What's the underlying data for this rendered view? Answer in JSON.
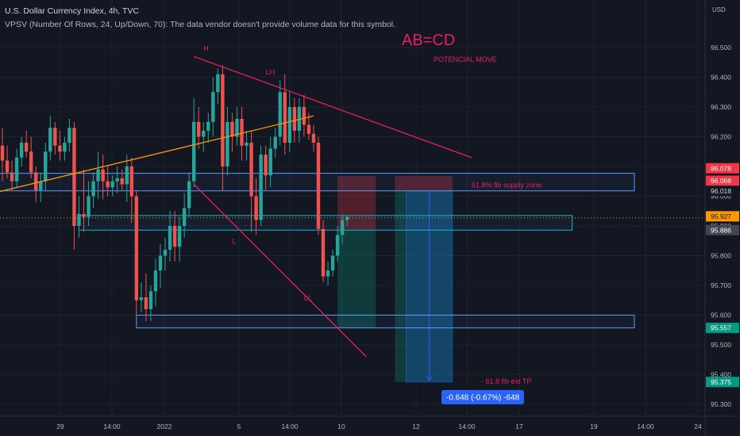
{
  "header": {
    "title": "U.S. Dollar Currency Index, 4h, TVC",
    "indicator": "VPSV (Number Of Rows, 24, Up/Down, 70): The data vendor doesn't provide volume data for this symbol."
  },
  "colors": {
    "background": "#131722",
    "up": "#26a69a",
    "down": "#ef5350",
    "magenta": "#e91e63",
    "orange": "#ff9800",
    "zone": "#5b9cf6",
    "target_blue": "#2962ff",
    "box_teal": "#00bcd4",
    "grid": "#1e222d",
    "text": "#b2b5be"
  },
  "chart_data": {
    "type": "candlestick",
    "symbol": "U.S. Dollar Currency Index",
    "timeframe": "4h",
    "source": "TVC",
    "ylim": [
      95.26,
      96.66
    ],
    "y_ticks": [
      95.3,
      95.4,
      95.5,
      95.6,
      95.7,
      95.8,
      95.9,
      96.0,
      96.1,
      96.2,
      96.3,
      96.4,
      96.5
    ],
    "y_axis_currency": "USD",
    "x_tick_labels": [
      "29",
      "14:00",
      "2022",
      "5",
      "14:00",
      "10",
      "12",
      "14:00",
      "17",
      "19",
      "14:00",
      "24"
    ],
    "candles": [
      {
        "o": 96.17,
        "h": 96.23,
        "l": 96.05,
        "c": 96.12
      },
      {
        "o": 96.12,
        "h": 96.17,
        "l": 96.06,
        "c": 96.08
      },
      {
        "o": 96.08,
        "h": 96.12,
        "l": 96.02,
        "c": 96.05
      },
      {
        "o": 96.05,
        "h": 96.16,
        "l": 96.03,
        "c": 96.13
      },
      {
        "o": 96.13,
        "h": 96.2,
        "l": 96.1,
        "c": 96.18
      },
      {
        "o": 96.18,
        "h": 96.22,
        "l": 96.13,
        "c": 96.15
      },
      {
        "o": 96.15,
        "h": 96.2,
        "l": 96.06,
        "c": 96.08
      },
      {
        "o": 96.08,
        "h": 96.1,
        "l": 95.98,
        "c": 96.02
      },
      {
        "o": 96.02,
        "h": 96.08,
        "l": 95.98,
        "c": 96.05
      },
      {
        "o": 96.05,
        "h": 96.18,
        "l": 96.02,
        "c": 96.15
      },
      {
        "o": 96.15,
        "h": 96.27,
        "l": 96.12,
        "c": 96.23
      },
      {
        "o": 96.23,
        "h": 96.25,
        "l": 96.14,
        "c": 96.17
      },
      {
        "o": 96.17,
        "h": 96.22,
        "l": 96.12,
        "c": 96.15
      },
      {
        "o": 96.15,
        "h": 96.2,
        "l": 96.12,
        "c": 96.18
      },
      {
        "o": 96.18,
        "h": 96.26,
        "l": 96.15,
        "c": 96.23
      },
      {
        "o": 96.23,
        "h": 96.25,
        "l": 95.82,
        "c": 95.9
      },
      {
        "o": 95.9,
        "h": 96.0,
        "l": 95.86,
        "c": 95.94
      },
      {
        "o": 95.94,
        "h": 96.09,
        "l": 95.88,
        "c": 95.93
      },
      {
        "o": 95.93,
        "h": 96.05,
        "l": 95.9,
        "c": 96.0
      },
      {
        "o": 96.0,
        "h": 96.08,
        "l": 95.96,
        "c": 96.05
      },
      {
        "o": 96.05,
        "h": 96.15,
        "l": 95.99,
        "c": 96.09
      },
      {
        "o": 96.09,
        "h": 96.14,
        "l": 95.99,
        "c": 96.05
      },
      {
        "o": 96.05,
        "h": 96.1,
        "l": 96.0,
        "c": 96.03
      },
      {
        "o": 96.03,
        "h": 96.07,
        "l": 96.0,
        "c": 96.05
      },
      {
        "o": 96.05,
        "h": 96.1,
        "l": 96.01,
        "c": 96.06
      },
      {
        "o": 96.06,
        "h": 96.09,
        "l": 96.02,
        "c": 96.04
      },
      {
        "o": 96.04,
        "h": 96.14,
        "l": 95.98,
        "c": 96.1
      },
      {
        "o": 96.1,
        "h": 96.13,
        "l": 95.91,
        "c": 96.0
      },
      {
        "o": 96.0,
        "h": 96.02,
        "l": 95.6,
        "c": 95.65
      },
      {
        "o": 95.65,
        "h": 95.71,
        "l": 95.61,
        "c": 95.66
      },
      {
        "o": 95.66,
        "h": 95.74,
        "l": 95.58,
        "c": 95.62
      },
      {
        "o": 95.62,
        "h": 95.7,
        "l": 95.58,
        "c": 95.68
      },
      {
        "o": 95.68,
        "h": 95.79,
        "l": 95.63,
        "c": 95.75
      },
      {
        "o": 95.75,
        "h": 95.84,
        "l": 95.69,
        "c": 95.8
      },
      {
        "o": 95.8,
        "h": 95.86,
        "l": 95.75,
        "c": 95.82
      },
      {
        "o": 95.82,
        "h": 95.95,
        "l": 95.78,
        "c": 95.9
      },
      {
        "o": 95.9,
        "h": 95.95,
        "l": 95.78,
        "c": 95.83
      },
      {
        "o": 95.83,
        "h": 95.93,
        "l": 95.78,
        "c": 95.9
      },
      {
        "o": 95.9,
        "h": 96.01,
        "l": 95.86,
        "c": 95.96
      },
      {
        "o": 95.96,
        "h": 96.08,
        "l": 95.93,
        "c": 96.05
      },
      {
        "o": 96.05,
        "h": 96.33,
        "l": 96.03,
        "c": 96.25
      },
      {
        "o": 96.25,
        "h": 96.3,
        "l": 96.16,
        "c": 96.2
      },
      {
        "o": 96.2,
        "h": 96.25,
        "l": 96.15,
        "c": 96.22
      },
      {
        "o": 96.22,
        "h": 96.28,
        "l": 96.18,
        "c": 96.25
      },
      {
        "o": 96.25,
        "h": 96.4,
        "l": 96.2,
        "c": 96.35
      },
      {
        "o": 96.35,
        "h": 96.43,
        "l": 96.31,
        "c": 96.41
      },
      {
        "o": 96.41,
        "h": 96.44,
        "l": 96.02,
        "c": 96.1
      },
      {
        "o": 96.1,
        "h": 96.3,
        "l": 96.07,
        "c": 96.25
      },
      {
        "o": 96.25,
        "h": 96.28,
        "l": 96.15,
        "c": 96.2
      },
      {
        "o": 96.2,
        "h": 96.3,
        "l": 96.17,
        "c": 96.26
      },
      {
        "o": 96.26,
        "h": 96.3,
        "l": 96.12,
        "c": 96.17
      },
      {
        "o": 96.17,
        "h": 96.22,
        "l": 96.12,
        "c": 96.18
      },
      {
        "o": 96.18,
        "h": 96.22,
        "l": 95.88,
        "c": 96.0
      },
      {
        "o": 96.0,
        "h": 96.06,
        "l": 95.87,
        "c": 95.92
      },
      {
        "o": 95.92,
        "h": 96.17,
        "l": 95.9,
        "c": 96.14
      },
      {
        "o": 96.14,
        "h": 96.17,
        "l": 96.02,
        "c": 96.07
      },
      {
        "o": 96.07,
        "h": 96.2,
        "l": 96.03,
        "c": 96.16
      },
      {
        "o": 96.16,
        "h": 96.23,
        "l": 96.13,
        "c": 96.2
      },
      {
        "o": 96.2,
        "h": 96.39,
        "l": 96.17,
        "c": 96.35
      },
      {
        "o": 96.35,
        "h": 96.41,
        "l": 96.14,
        "c": 96.18
      },
      {
        "o": 96.18,
        "h": 96.35,
        "l": 96.15,
        "c": 96.3
      },
      {
        "o": 96.3,
        "h": 96.33,
        "l": 96.18,
        "c": 96.22
      },
      {
        "o": 96.22,
        "h": 96.33,
        "l": 96.18,
        "c": 96.3
      },
      {
        "o": 96.3,
        "h": 96.34,
        "l": 96.2,
        "c": 96.24
      },
      {
        "o": 96.24,
        "h": 96.28,
        "l": 96.19,
        "c": 96.21
      },
      {
        "o": 96.21,
        "h": 96.24,
        "l": 96.15,
        "c": 96.18
      },
      {
        "o": 96.18,
        "h": 96.2,
        "l": 95.87,
        "c": 95.89
      },
      {
        "o": 95.89,
        "h": 95.92,
        "l": 95.71,
        "c": 95.73
      },
      {
        "o": 95.73,
        "h": 95.78,
        "l": 95.7,
        "c": 95.75
      },
      {
        "o": 95.75,
        "h": 95.82,
        "l": 95.73,
        "c": 95.8
      },
      {
        "o": 95.8,
        "h": 95.9,
        "l": 95.78,
        "c": 95.87
      },
      {
        "o": 95.87,
        "h": 95.94,
        "l": 95.84,
        "c": 95.92
      },
      {
        "o": 95.92,
        "h": 95.935,
        "l": 95.9,
        "c": 95.93
      }
    ],
    "lines": [
      {
        "name": "descending-resistance",
        "color": "#e91e63",
        "p1": {
          "i": 40,
          "y": 96.47
        },
        "p2": {
          "i": 98,
          "y": 96.13
        }
      },
      {
        "name": "descending-support",
        "color": "#e91e63",
        "p1": {
          "i": 40,
          "y": 96.04
        },
        "p2": {
          "i": 76,
          "y": 95.46
        }
      },
      {
        "name": "ascending-trendline",
        "color": "#ff9800",
        "p1": {
          "i": -2,
          "y": 96.01
        },
        "p2": {
          "i": 65,
          "y": 96.27
        }
      }
    ],
    "zones": [
      {
        "name": "supply-zone",
        "y1": 96.077,
        "y2": 96.018,
        "x1": -2,
        "x2": 132,
        "color": "#5b9cf6"
      },
      {
        "name": "demand-zone",
        "y1": 95.6,
        "y2": 95.557,
        "x1": 28,
        "x2": 132,
        "color": "#5b9cf6"
      },
      {
        "name": "consolidation-box",
        "y1": 95.935,
        "y2": 95.886,
        "x1": 16,
        "x2": 119,
        "color": "#00bcd4"
      }
    ],
    "position_boxes": [
      {
        "name": "short-position-1",
        "entry": 95.886,
        "stop": 96.068,
        "target": 95.557,
        "x1": 70,
        "x2": 78
      },
      {
        "name": "short-position-2",
        "entry": 96.018,
        "stop": 96.068,
        "target": 95.375,
        "x1": 82,
        "x2": 94
      }
    ],
    "price_labels": [
      {
        "value": "96.078",
        "kind": "red",
        "y": 96.078
      },
      {
        "value": "96.068",
        "kind": "red",
        "y": 96.068
      },
      {
        "value": "96.018",
        "kind": "plain",
        "y": 96.018
      },
      {
        "value": "95.927",
        "kind": "orange",
        "y": 95.927
      },
      {
        "value": "95.886",
        "kind": "gray",
        "y": 95.886
      },
      {
        "value": "95.557",
        "kind": "green",
        "y": 95.557
      },
      {
        "value": "95.375",
        "kind": "green",
        "y": 95.375
      }
    ],
    "current_price": 95.927,
    "annotations": [
      {
        "text": "H",
        "i": 42,
        "y": 96.49,
        "color": "#e91e63"
      },
      {
        "text": "LH",
        "i": 55,
        "y": 96.41,
        "color": "#e91e63"
      },
      {
        "text": "L",
        "i": 48,
        "y": 95.84,
        "color": "#e91e63"
      },
      {
        "text": "LL",
        "i": 63,
        "y": 95.65,
        "color": "#e91e63"
      },
      {
        "text": "61.8% fib supply zone",
        "i": 98,
        "y": 96.03,
        "color": "#e91e63"
      },
      {
        "text": "- 61.8 fib ext TP",
        "i": 100,
        "y": 95.37,
        "color": "#e91e63"
      }
    ],
    "big_label": "AB=CD",
    "big_sublabel": "POTENCIAL MOVE",
    "measure_label": "-0.648 (-0.67%) -648"
  }
}
